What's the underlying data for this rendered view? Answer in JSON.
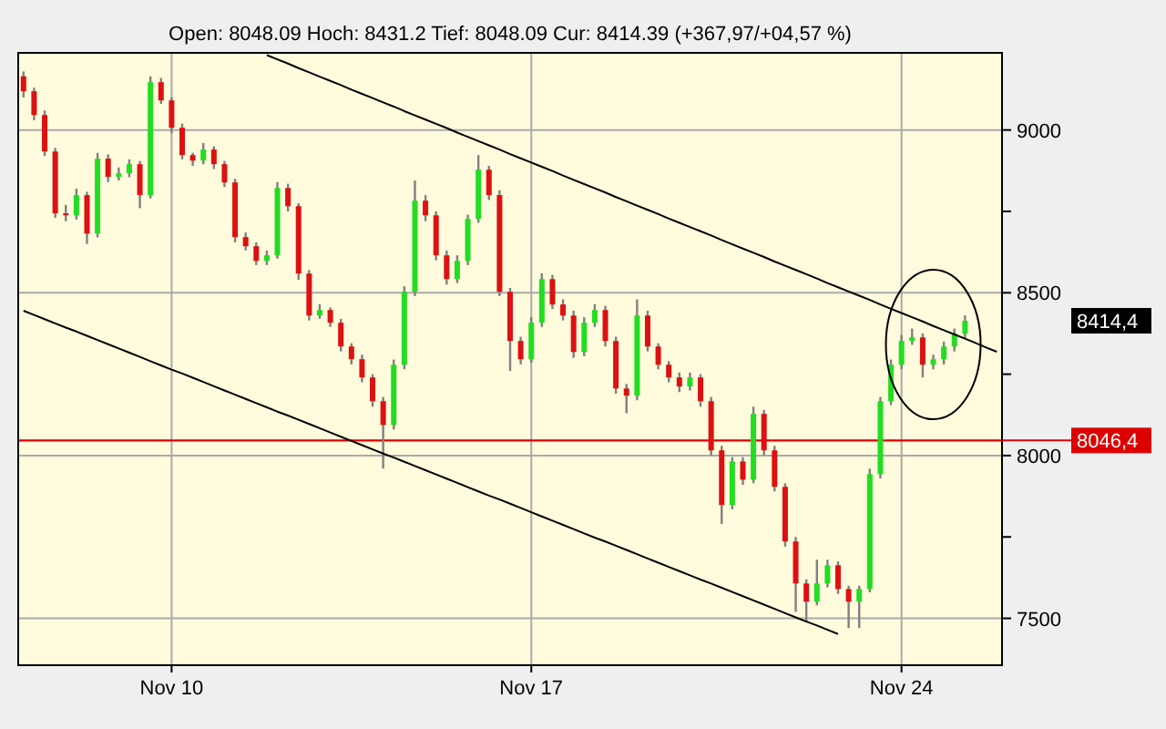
{
  "chart_data": {
    "type": "candlestick",
    "title": "Open: 8048.09 Hoch: 8431.2 Tief: 8048.09 Cur: 8414.39 (+367,97/+04,57 %)",
    "categories": [
      null,
      null,
      null,
      null,
      null,
      null,
      null,
      null,
      null,
      null,
      null,
      null,
      null,
      null,
      "Nov 10",
      null,
      null,
      null,
      null,
      null,
      null,
      null,
      null,
      null,
      null,
      null,
      null,
      null,
      null,
      null,
      null,
      null,
      null,
      null,
      null,
      null,
      null,
      null,
      null,
      null,
      null,
      null,
      null,
      null,
      null,
      null,
      null,
      null,
      "Nov 17",
      null,
      null,
      null,
      null,
      null,
      null,
      null,
      null,
      null,
      null,
      null,
      null,
      null,
      null,
      null,
      null,
      null,
      null,
      null,
      null,
      null,
      null,
      null,
      null,
      null,
      null,
      null,
      null,
      null,
      null,
      null,
      null,
      null,
      null,
      "Nov 24",
      null,
      null,
      null,
      null,
      null,
      null,
      null,
      null,
      null
    ],
    "ohlc": [
      [
        9165,
        9180,
        9100,
        9119
      ],
      [
        9119,
        9130,
        9030,
        9046
      ],
      [
        9046,
        9060,
        8920,
        8934
      ],
      [
        8934,
        8945,
        8730,
        8744
      ],
      [
        8744,
        8770,
        8720,
        8738
      ],
      [
        8738,
        8820,
        8725,
        8800
      ],
      [
        8800,
        8810,
        8650,
        8682
      ],
      [
        8682,
        8930,
        8670,
        8912
      ],
      [
        8912,
        8925,
        8840,
        8856
      ],
      [
        8856,
        8885,
        8845,
        8867
      ],
      [
        8867,
        8910,
        8855,
        8895
      ],
      [
        8895,
        8905,
        8760,
        8800
      ],
      [
        8800,
        9165,
        8790,
        9147
      ],
      [
        9147,
        9160,
        9080,
        9091
      ],
      [
        9091,
        9100,
        8990,
        9007
      ],
      [
        9007,
        9020,
        8910,
        8923
      ],
      [
        8923,
        8930,
        8890,
        8906
      ],
      [
        8906,
        8960,
        8895,
        8940
      ],
      [
        8940,
        8950,
        8880,
        8895
      ],
      [
        8895,
        8905,
        8825,
        8839
      ],
      [
        8839,
        8850,
        8655,
        8671
      ],
      [
        8671,
        8685,
        8630,
        8643
      ],
      [
        8643,
        8655,
        8585,
        8598
      ],
      [
        8598,
        8630,
        8585,
        8615
      ],
      [
        8615,
        8840,
        8605,
        8822
      ],
      [
        8822,
        8835,
        8750,
        8766
      ],
      [
        8766,
        8775,
        8540,
        8559
      ],
      [
        8559,
        8570,
        8415,
        8430
      ],
      [
        8430,
        8465,
        8420,
        8447
      ],
      [
        8447,
        8455,
        8395,
        8408
      ],
      [
        8408,
        8420,
        8320,
        8335
      ],
      [
        8335,
        8345,
        8280,
        8296
      ],
      [
        8296,
        8310,
        8225,
        8240
      ],
      [
        8240,
        8250,
        8150,
        8167
      ],
      [
        8167,
        8180,
        7960,
        8094
      ],
      [
        8094,
        8295,
        8080,
        8279
      ],
      [
        8279,
        8520,
        8265,
        8503
      ],
      [
        8503,
        8845,
        8490,
        8783
      ],
      [
        8783,
        8800,
        8720,
        8738
      ],
      [
        8738,
        8750,
        8600,
        8615
      ],
      [
        8615,
        8630,
        8525,
        8542
      ],
      [
        8542,
        8615,
        8530,
        8598
      ],
      [
        8598,
        8740,
        8585,
        8727
      ],
      [
        8727,
        8923,
        8715,
        8878
      ],
      [
        8878,
        8890,
        8785,
        8800
      ],
      [
        8800,
        8815,
        8490,
        8503
      ],
      [
        8503,
        8515,
        8260,
        8352
      ],
      [
        8352,
        8365,
        8280,
        8296
      ],
      [
        8296,
        8425,
        8285,
        8408
      ],
      [
        8408,
        8560,
        8395,
        8542
      ],
      [
        8542,
        8555,
        8450,
        8464
      ],
      [
        8464,
        8480,
        8415,
        8430
      ],
      [
        8430,
        8445,
        8300,
        8318
      ],
      [
        8318,
        8425,
        8305,
        8408
      ],
      [
        8408,
        8465,
        8395,
        8447
      ],
      [
        8447,
        8460,
        8335,
        8352
      ],
      [
        8352,
        8365,
        8190,
        8206
      ],
      [
        8206,
        8220,
        8130,
        8184
      ],
      [
        8184,
        8480,
        8170,
        8430
      ],
      [
        8430,
        8445,
        8320,
        8335
      ],
      [
        8335,
        8345,
        8265,
        8279
      ],
      [
        8279,
        8290,
        8225,
        8240
      ],
      [
        8240,
        8255,
        8195,
        8212
      ],
      [
        8212,
        8255,
        8200,
        8240
      ],
      [
        8240,
        8250,
        8150,
        8167
      ],
      [
        8167,
        8180,
        8000,
        8016
      ],
      [
        8016,
        8030,
        7790,
        7848
      ],
      [
        7848,
        7995,
        7835,
        7982
      ],
      [
        7982,
        7995,
        7910,
        7926
      ],
      [
        7926,
        8150,
        7915,
        8128
      ],
      [
        8128,
        8140,
        8000,
        8016
      ],
      [
        8016,
        8030,
        7890,
        7904
      ],
      [
        7904,
        7915,
        7720,
        7736
      ],
      [
        7736,
        7750,
        7520,
        7607
      ],
      [
        7607,
        7620,
        7490,
        7551
      ],
      [
        7551,
        7680,
        7540,
        7607
      ],
      [
        7607,
        7680,
        7595,
        7663
      ],
      [
        7663,
        7675,
        7575,
        7590
      ],
      [
        7590,
        7600,
        7470,
        7551
      ],
      [
        7551,
        7600,
        7470,
        7590
      ],
      [
        7590,
        7960,
        7580,
        7943
      ],
      [
        7943,
        8180,
        7930,
        8167
      ],
      [
        8167,
        8295,
        8155,
        8279
      ],
      [
        8279,
        8370,
        8265,
        8352
      ],
      [
        8352,
        8390,
        8340,
        8363
      ],
      [
        8363,
        8375,
        8240,
        8279
      ],
      [
        8279,
        8310,
        8265,
        8296
      ],
      [
        8296,
        8350,
        8280,
        8335
      ],
      [
        8335,
        8390,
        8320,
        8374
      ],
      [
        8374,
        8431,
        8360,
        8414
      ],
      null,
      null,
      null
    ],
    "series": [
      {
        "type": "line",
        "color": "#000000",
        "values": [
          null,
          null,
          null,
          null,
          null,
          null,
          null,
          null,
          null,
          null,
          null,
          null,
          null,
          null,
          null,
          null,
          null,
          null,
          null,
          null,
          null,
          null,
          null,
          9230,
          9217,
          9204,
          9190,
          9177,
          9164,
          9151,
          9138,
          9124,
          9111,
          9098,
          9085,
          9072,
          9058,
          9045,
          9032,
          9019,
          9006,
          8992,
          8979,
          8966,
          8953,
          8940,
          8926,
          8913,
          8900,
          8887,
          8874,
          8860,
          8847,
          8834,
          8821,
          8808,
          8794,
          8781,
          8768,
          8755,
          8742,
          8728,
          8715,
          8702,
          8689,
          8676,
          8662,
          8649,
          8636,
          8623,
          8610,
          8596,
          8583,
          8570,
          8557,
          8544,
          8530,
          8517,
          8504,
          8491,
          8478,
          8464,
          8451,
          8438,
          8425,
          8412,
          8398,
          8385,
          8372,
          8359,
          8346,
          8332,
          8319
        ]
      },
      {
        "type": "line",
        "color": "#000000",
        "values": [
          8445,
          8432,
          8419,
          8406,
          8393,
          8381,
          8368,
          8355,
          8342,
          8329,
          8316,
          8303,
          8290,
          8277,
          8264,
          8252,
          8239,
          8226,
          8213,
          8200,
          8187,
          8174,
          8161,
          8148,
          8135,
          8123,
          8110,
          8097,
          8084,
          8071,
          8058,
          8045,
          8032,
          8019,
          8006,
          7994,
          7981,
          7968,
          7955,
          7942,
          7929,
          7916,
          7903,
          7890,
          7877,
          7865,
          7852,
          7839,
          7826,
          7813,
          7800,
          7787,
          7774,
          7761,
          7748,
          7736,
          7723,
          7710,
          7697,
          7684,
          7671,
          7658,
          7645,
          7632,
          7619,
          7607,
          7594,
          7581,
          7568,
          7555,
          7542,
          7529,
          7516,
          7503,
          7490,
          7478,
          7465,
          7452,
          null,
          null,
          null,
          null,
          null,
          null,
          null,
          null,
          null,
          null,
          null,
          null,
          null,
          null,
          null
        ]
      }
    ],
    "ylim": [
      7356,
      9237
    ],
    "yticks": [
      7500,
      {
        "value": 7750,
        "label": null
      },
      8000,
      {
        "value": 8250,
        "label": null
      },
      8500,
      {
        "value": 8750,
        "label": null
      },
      9000
    ],
    "grid": true,
    "ref_lines": [
      {
        "axis": "y",
        "value": 8046.4,
        "label": "8046,4",
        "color": "#dd0000"
      }
    ],
    "annotations": [
      "8414,4"
    ]
  }
}
